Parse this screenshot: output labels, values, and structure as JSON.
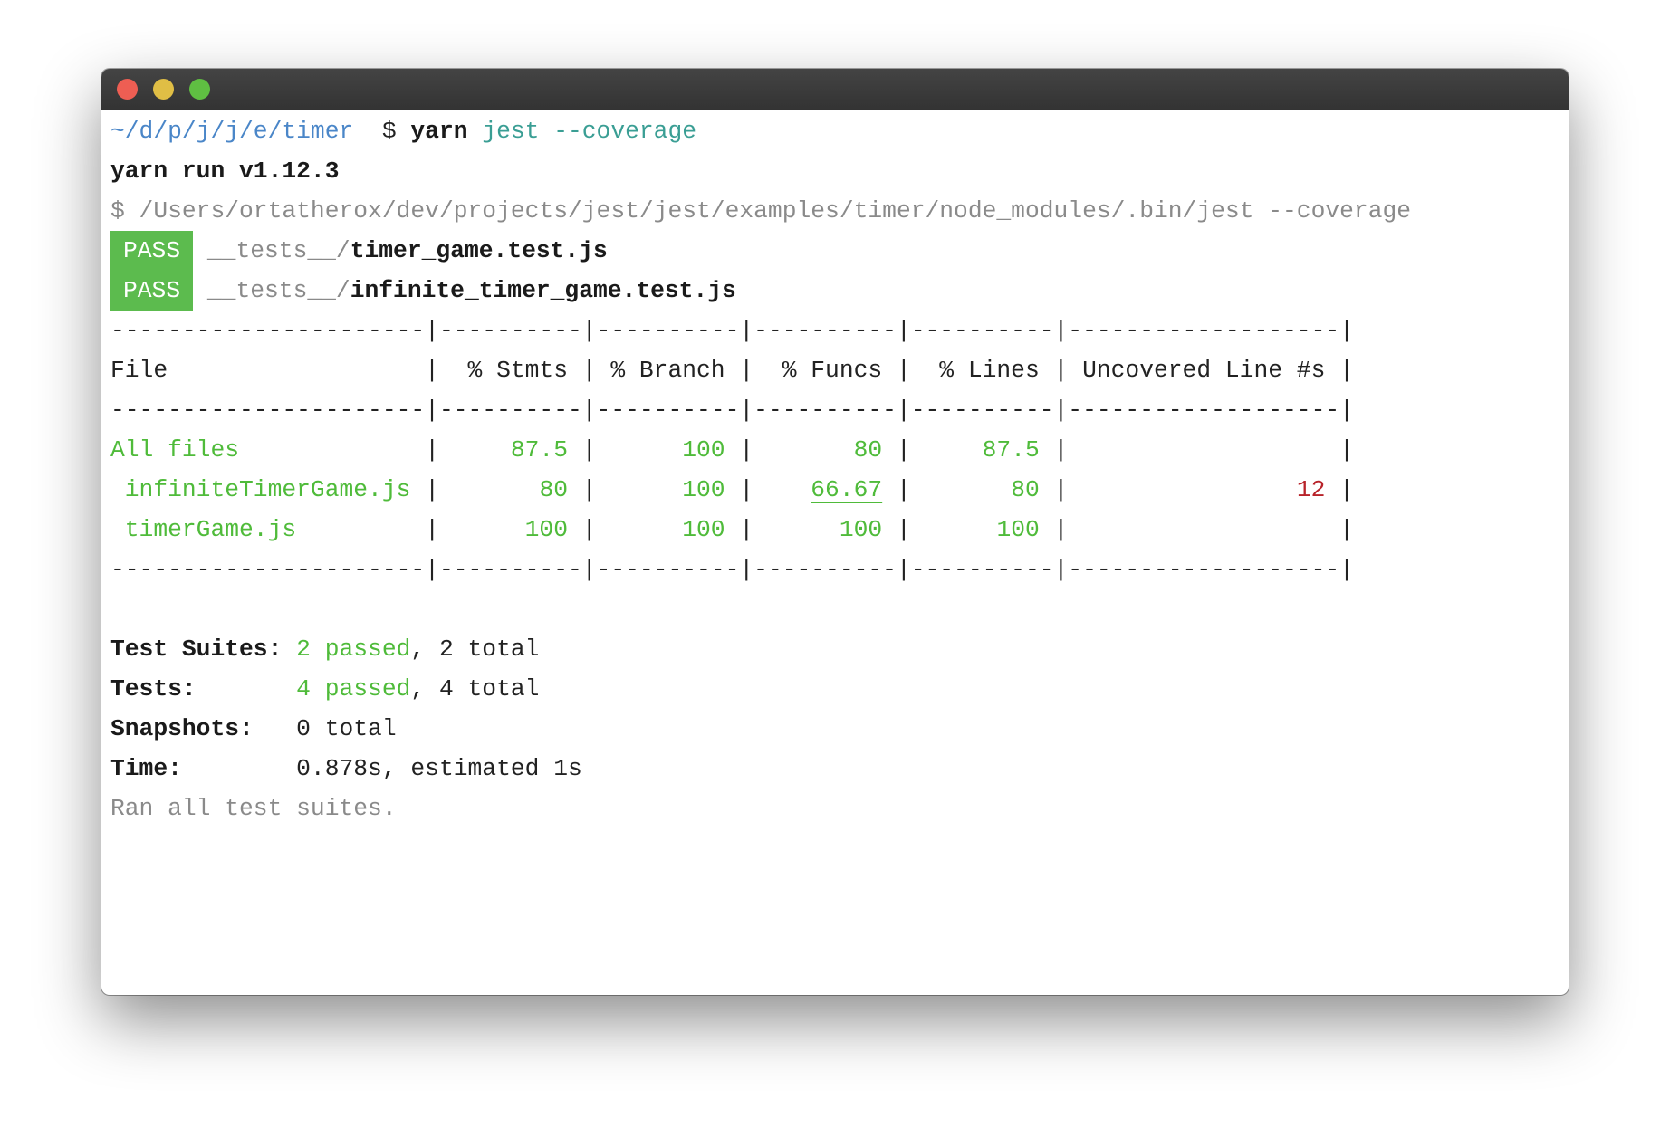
{
  "prompt": {
    "cwd": "~/d/p/j/j/e/timer",
    "symbol": "$",
    "command": "yarn",
    "args": "jest --coverage"
  },
  "yarn_version_line": "yarn run v1.12.3",
  "exec_line": "$ /Users/ortatherox/dev/projects/jest/jest/examples/timer/node_modules/.bin/jest --coverage",
  "results": [
    {
      "badge": "PASS",
      "dir": "__tests__/",
      "file": "timer_game.test.js"
    },
    {
      "badge": "PASS",
      "dir": "__tests__/",
      "file": "infinite_timer_game.test.js"
    }
  ],
  "table": {
    "separator": "----------------------|----------|----------|----------|----------|-------------------|",
    "columns": [
      "File",
      "% Stmts",
      "% Branch",
      "% Funcs",
      "% Lines",
      "Uncovered Line #s"
    ],
    "rows": [
      {
        "file": "All files",
        "stmts": "87.5",
        "branch": "100",
        "funcs": "80",
        "lines": "87.5",
        "uncovered": ""
      },
      {
        "file": " infiniteTimerGame.js",
        "stmts": "80",
        "branch": "100",
        "funcs": "66.67",
        "lines": "80",
        "uncovered": "12"
      },
      {
        "file": " timerGame.js",
        "stmts": "100",
        "branch": "100",
        "funcs": "100",
        "lines": "100",
        "uncovered": ""
      }
    ]
  },
  "summary": {
    "suites": {
      "label": "Test Suites:",
      "passed": "2 passed",
      "rest": ", 2 total"
    },
    "tests": {
      "label": "Tests:",
      "passed": "4 passed",
      "rest": ", 4 total"
    },
    "snapshots": {
      "label": "Snapshots:",
      "value": "0 total"
    },
    "time": {
      "label": "Time:",
      "value": "0.878s, estimated 1s"
    },
    "footer": "Ran all test suites."
  },
  "colors": {
    "pass": "#5cbb4e",
    "green": "#4fbb3a",
    "red": "#b8232a",
    "teal": "#3a9e94",
    "blue": "#4a86c8"
  }
}
